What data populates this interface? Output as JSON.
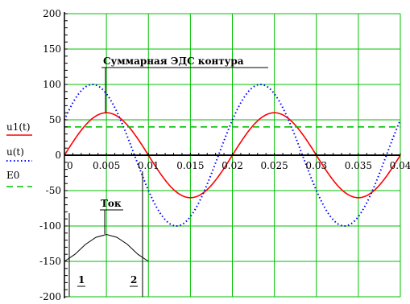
{
  "chart_data": {
    "type": "line",
    "title": "",
    "xlabel": "",
    "ylabel": "",
    "xlim": [
      0,
      0.04
    ],
    "ylim": [
      -200,
      200
    ],
    "grid": true,
    "x_ticks": [
      "0",
      "0.005",
      "0.01",
      "0.015",
      "0.02",
      "0.025",
      "0.03",
      "0.035",
      "0.04"
    ],
    "y_ticks": [
      "200",
      "150",
      "100",
      "50",
      "0",
      "-50",
      "-100",
      "-150",
      "-200"
    ],
    "legend_position": "left",
    "series": [
      {
        "name": "u1(t)",
        "style": "solid",
        "color": "#ff0000",
        "amplitude": 60,
        "period": 0.02,
        "phase": 0,
        "y_offset": 0
      },
      {
        "name": "u(t)",
        "style": "dotted",
        "color": "#0000ff",
        "amplitude": 100,
        "period": 0.02,
        "phase": 0.52,
        "y_offset": 0
      },
      {
        "name": "E0",
        "style": "dashed",
        "color": "#00c000",
        "constant": 40
      }
    ],
    "annotations": {
      "emf_label": "Суммарная ЭДС контура",
      "current_label": "Ток",
      "marker_1": "1",
      "marker_2": "2"
    },
    "current_inset": {
      "x": [
        0,
        0.00125,
        0.0025,
        0.00375,
        0.005,
        0.00625,
        0.0075,
        0.00875,
        0.01
      ],
      "y": [
        -150,
        -140,
        -126,
        -116,
        -112,
        -116,
        -126,
        -140,
        -150
      ]
    }
  }
}
